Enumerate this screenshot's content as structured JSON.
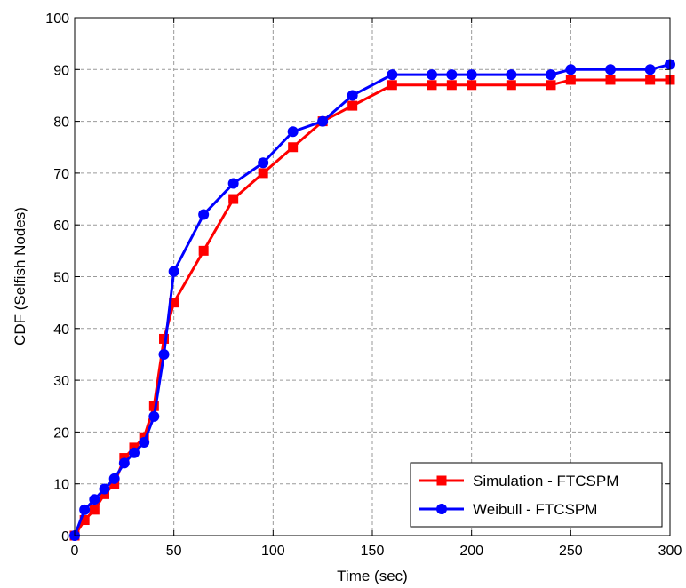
{
  "chart_data": {
    "type": "line",
    "title": "",
    "xlabel": "Time (sec)",
    "ylabel": "CDF (Selfish Nodes)",
    "xlim": [
      0,
      300
    ],
    "ylim": [
      0,
      100
    ],
    "xticks": [
      0,
      50,
      100,
      150,
      200,
      250,
      300
    ],
    "yticks": [
      0,
      10,
      20,
      30,
      40,
      50,
      60,
      70,
      80,
      90,
      100
    ],
    "grid": true,
    "grid_style": "dashed",
    "legend_position": "bottom-right",
    "series": [
      {
        "name": "Simulation - FTCSPM",
        "color": "#ff0000",
        "marker": "square",
        "x": [
          0,
          5,
          10,
          15,
          20,
          25,
          30,
          35,
          40,
          45,
          50,
          65,
          80,
          95,
          110,
          125,
          140,
          160,
          180,
          190,
          200,
          220,
          240,
          250,
          270,
          290,
          300
        ],
        "y": [
          0,
          3,
          5,
          8,
          10,
          15,
          17,
          19,
          25,
          38,
          45,
          55,
          65,
          70,
          75,
          80,
          83,
          87,
          87,
          87,
          87,
          87,
          87,
          88,
          88,
          88,
          88
        ]
      },
      {
        "name": "Weibull - FTCSPM",
        "color": "#0000ff",
        "marker": "circle",
        "x": [
          0,
          5,
          10,
          15,
          20,
          25,
          30,
          35,
          40,
          45,
          50,
          65,
          80,
          95,
          110,
          125,
          140,
          160,
          180,
          190,
          200,
          220,
          240,
          250,
          270,
          290,
          300
        ],
        "y": [
          0,
          5,
          7,
          9,
          11,
          14,
          16,
          18,
          23,
          35,
          51,
          62,
          68,
          72,
          78,
          80,
          85,
          89,
          89,
          89,
          89,
          89,
          89,
          90,
          90,
          90,
          91
        ]
      }
    ]
  }
}
